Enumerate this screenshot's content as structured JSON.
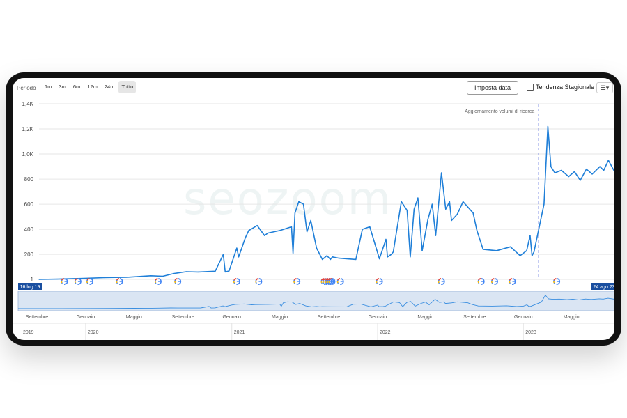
{
  "toolbar": {
    "period_label": "Periodo",
    "ranges": [
      "1m",
      "3m",
      "6m",
      "12m",
      "24m",
      "Tutto"
    ],
    "active_range": "Tutto",
    "set_date_label": "Imposta data",
    "seasonal_label": "Tendenza Stagionale",
    "menu_icon": "hamburger-menu-icon"
  },
  "watermark": "seozoom",
  "colors": {
    "line": "#1f7fd8",
    "annotation": "#6677dd",
    "navigator": "#bcd0ea",
    "badge": "#1a4fa0"
  },
  "chart_data": {
    "type": "line",
    "y_ticks": [
      "1",
      "200",
      "400",
      "600",
      "800",
      "1,0K",
      "1,2K",
      "1,4K"
    ],
    "y_tick_values": [
      1,
      200,
      400,
      600,
      800,
      1000,
      1200,
      1400
    ],
    "ylim": [
      1,
      1400
    ],
    "xlim": [
      "2019-07-16",
      "2023-08-24"
    ],
    "annotation": {
      "label": "Aggiornamento volumi di ricerca",
      "x": "2023-02-01"
    },
    "series": [
      {
        "x": [
          "2019-07-16",
          "2019-09-01",
          "2019-11-01",
          "2020-01-01",
          "2020-03-01",
          "2020-05-01",
          "2020-06-01",
          "2020-07-01",
          "2020-08-01",
          "2020-09-01",
          "2020-10-15",
          "2020-11-05",
          "2020-11-10",
          "2020-11-20",
          "2020-12-10",
          "2020-12-15",
          "2021-01-01",
          "2021-01-10",
          "2021-02-01",
          "2021-02-20",
          "2021-03-01",
          "2021-04-01",
          "2021-05-01",
          "2021-05-05",
          "2021-05-10",
          "2021-05-20",
          "2021-06-01",
          "2021-06-10",
          "2021-06-20",
          "2021-07-05",
          "2021-07-20",
          "2021-08-01",
          "2021-08-10",
          "2021-08-15",
          "2021-09-01",
          "2021-10-15",
          "2021-11-01",
          "2021-11-20",
          "2021-12-15",
          "2022-01-01",
          "2022-01-05",
          "2022-01-15",
          "2022-01-20",
          "2022-02-10",
          "2022-02-25",
          "2022-03-05",
          "2022-03-15",
          "2022-03-25",
          "2022-04-05",
          "2022-04-20",
          "2022-05-01",
          "2022-05-10",
          "2022-05-25",
          "2022-06-05",
          "2022-06-15",
          "2022-06-20",
          "2022-07-05",
          "2022-07-20",
          "2022-08-15",
          "2022-08-25",
          "2022-09-10",
          "2022-10-15",
          "2022-11-20",
          "2022-12-15",
          "2023-01-01",
          "2023-01-10",
          "2023-01-15",
          "2023-01-20",
          "2023-02-15",
          "2023-02-25",
          "2023-03-05",
          "2023-03-15",
          "2023-04-01",
          "2023-04-20",
          "2023-05-05",
          "2023-05-20",
          "2023-06-05",
          "2023-06-20",
          "2023-07-10",
          "2023-07-20",
          "2023-08-01",
          "2023-08-24"
        ],
        "values": [
          1,
          3,
          8,
          15,
          18,
          30,
          26,
          48,
          62,
          60,
          66,
          200,
          60,
          68,
          250,
          180,
          330,
          390,
          430,
          350,
          370,
          390,
          420,
          210,
          530,
          620,
          600,
          380,
          470,
          250,
          160,
          190,
          160,
          180,
          170,
          160,
          400,
          420,
          165,
          320,
          180,
          200,
          220,
          620,
          550,
          180,
          560,
          650,
          230,
          480,
          600,
          350,
          850,
          560,
          620,
          470,
          520,
          620,
          530,
          390,
          240,
          230,
          260,
          190,
          230,
          350,
          190,
          220,
          600,
          1220,
          900,
          850,
          870,
          820,
          860,
          790,
          880,
          840,
          900,
          870,
          950,
          820
        ]
      }
    ],
    "x_months": [
      "Settembre",
      "Gennaio",
      "Maggio",
      "Settembre",
      "Gennaio",
      "Maggio",
      "Settembre",
      "Gennaio",
      "Maggio",
      "Settembre",
      "Gennaio",
      "Maggio"
    ],
    "x_years": [
      "2019",
      "2020",
      "2021",
      "2022",
      "2023"
    ],
    "google_updates": [
      "2019-09-20",
      "2019-10-25",
      "2019-11-25",
      "2020-02-10",
      "2020-05-20",
      "2020-07-10",
      "2020-12-10",
      "2021-02-05",
      "2021-05-15",
      "2021-07-25",
      "2021-07-30",
      "2021-08-05",
      "2021-08-10",
      "2021-08-14",
      "2021-09-05",
      "2021-12-15",
      "2022-05-25",
      "2022-09-05",
      "2022-10-10",
      "2022-11-25",
      "2023-03-20"
    ],
    "range_start_label": "16 lug 19",
    "range_end_label": "24 ago 23"
  }
}
